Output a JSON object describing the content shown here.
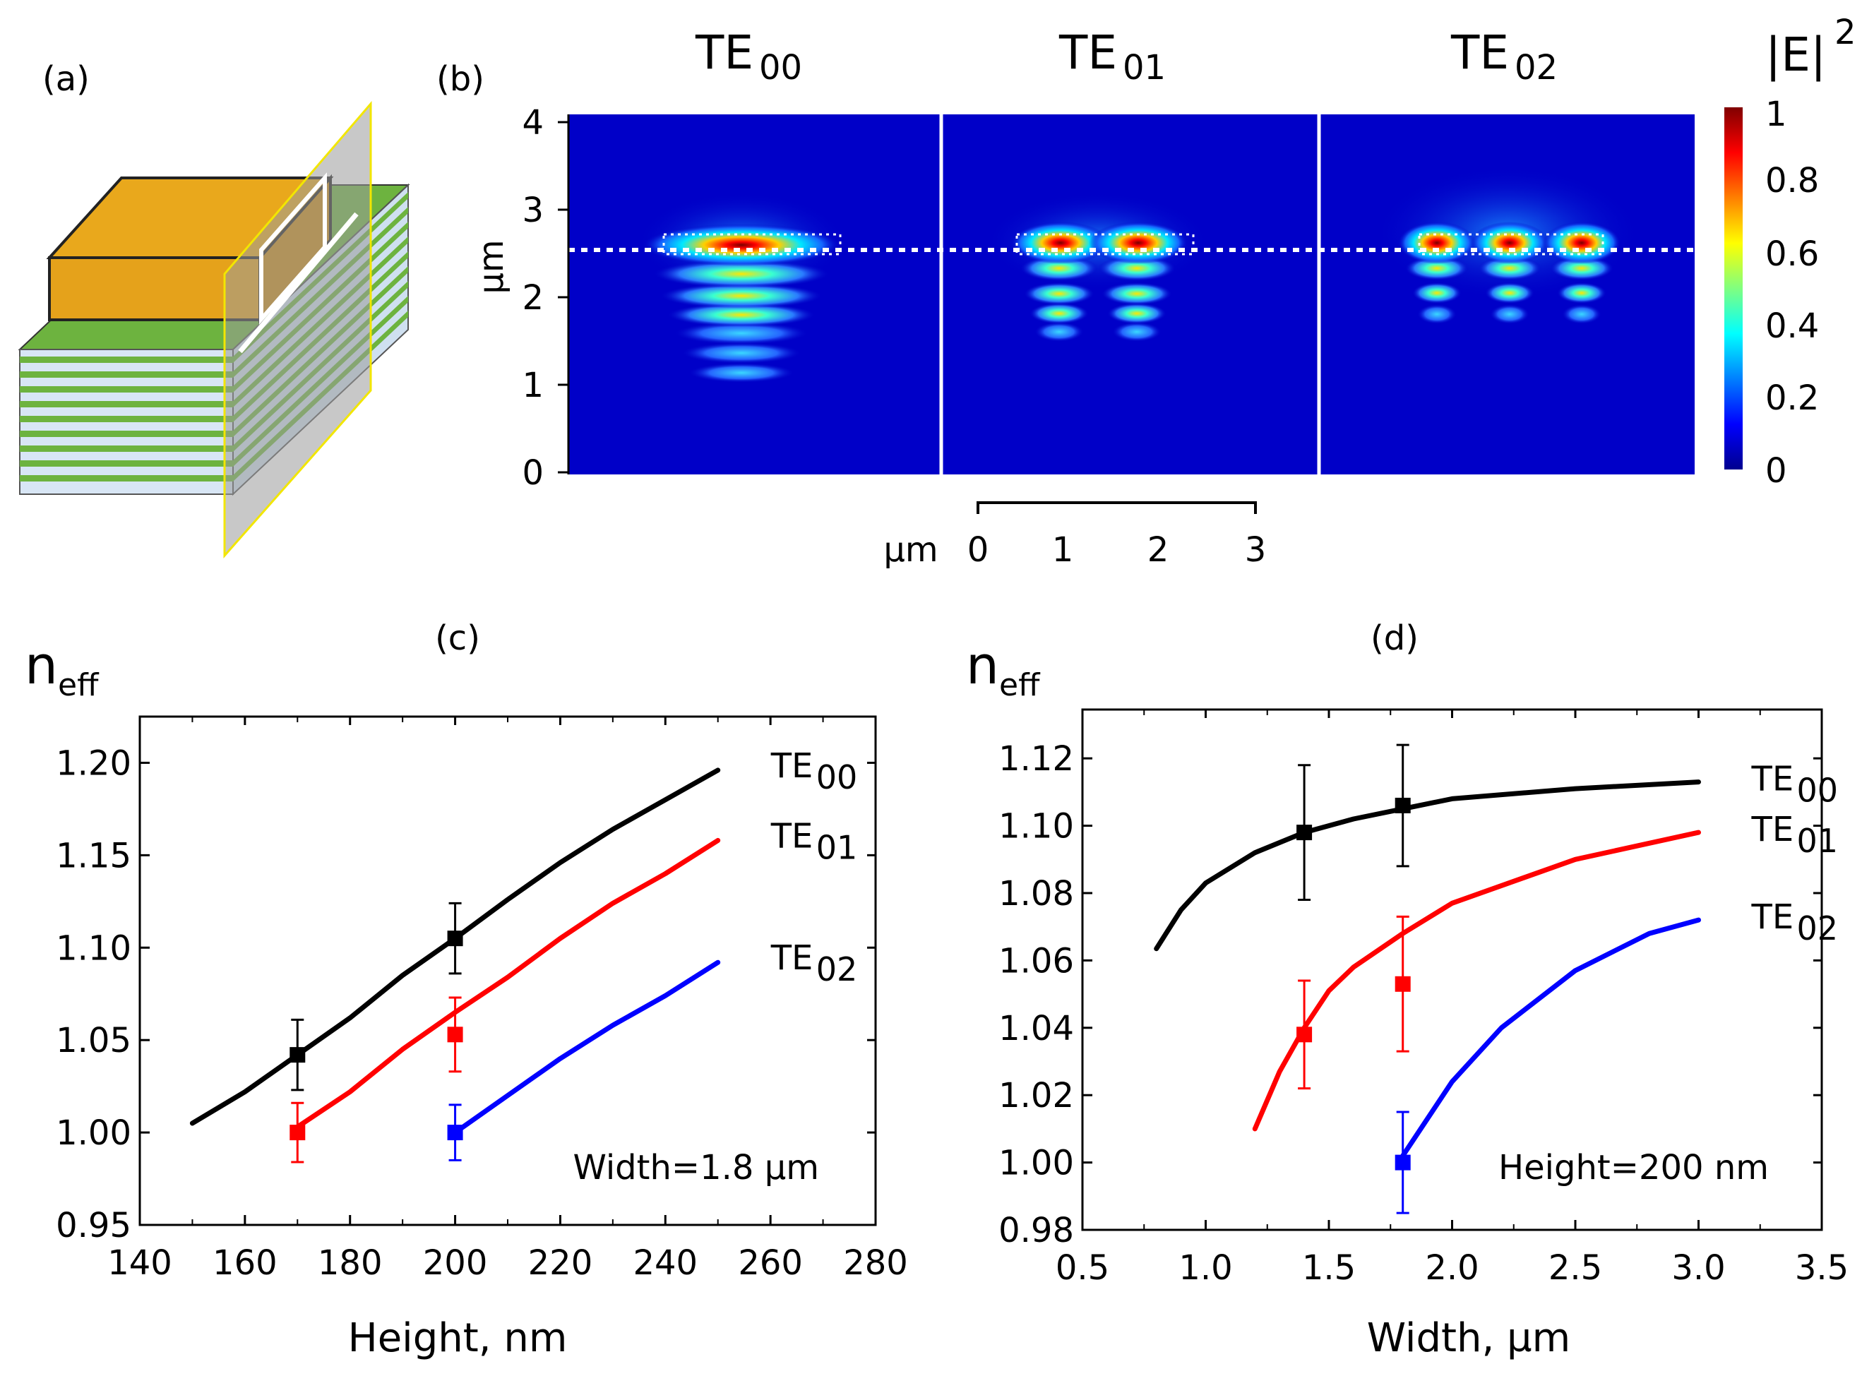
{
  "panels": {
    "a": {
      "label": "(a)"
    },
    "b": {
      "label": "(b)",
      "mode_headers": [
        {
          "base": "TE",
          "sub": "00"
        },
        {
          "base": "TE",
          "sub": "01"
        },
        {
          "base": "TE",
          "sub": "02"
        }
      ],
      "y_axis_label": "µm",
      "y_ticks": [
        "0",
        "1",
        "2",
        "3",
        "4"
      ],
      "scale_bar_label": "µm",
      "scale_bar_ticks": [
        "0",
        "1",
        "2",
        "3"
      ],
      "colorbar_title": "|E|",
      "colorbar_power": "2",
      "colorbar_ticks": [
        "0",
        "0.2",
        "0.4",
        "0.6",
        "0.8",
        "1"
      ]
    }
  },
  "chart_data": [
    {
      "id": "c",
      "type": "line",
      "panel_label": "(c)",
      "ylabel_base": "n",
      "ylabel_sub": "eff",
      "xlabel": "Height, nm",
      "annotation": "Width=1.8 µm",
      "xlim": [
        140,
        280
      ],
      "ylim": [
        0.95,
        1.225
      ],
      "xticks": [
        "140",
        "160",
        "180",
        "200",
        "220",
        "240",
        "260",
        "280"
      ],
      "yticks": [
        "0.95",
        "1.00",
        "1.05",
        "1.10",
        "1.15",
        "1.20"
      ],
      "series": [
        {
          "name": "TE",
          "sub": "00",
          "color": "#000000",
          "x": [
            150,
            160,
            170,
            180,
            190,
            200,
            210,
            220,
            230,
            240,
            250
          ],
          "y": [
            1.005,
            1.022,
            1.042,
            1.062,
            1.085,
            1.105,
            1.126,
            1.146,
            1.164,
            1.18,
            1.196
          ],
          "points": [
            {
              "x": 170,
              "y": 1.042,
              "err": 0.019
            },
            {
              "x": 200,
              "y": 1.105,
              "err": 0.019
            }
          ]
        },
        {
          "name": "TE",
          "sub": "01",
          "color": "#ff0000",
          "x": [
            170,
            180,
            190,
            200,
            210,
            220,
            230,
            240,
            250
          ],
          "y": [
            1.003,
            1.022,
            1.045,
            1.065,
            1.084,
            1.105,
            1.124,
            1.14,
            1.158
          ],
          "points": [
            {
              "x": 170,
              "y": 1.0,
              "err": 0.016
            },
            {
              "x": 200,
              "y": 1.053,
              "err": 0.02
            }
          ]
        },
        {
          "name": "TE",
          "sub": "02",
          "color": "#0000ff",
          "x": [
            200,
            210,
            220,
            230,
            240,
            250
          ],
          "y": [
            1.0,
            1.02,
            1.04,
            1.058,
            1.074,
            1.092
          ],
          "points": [
            {
              "x": 200,
              "y": 1.0,
              "err": 0.015
            }
          ]
        }
      ]
    },
    {
      "id": "d",
      "type": "line",
      "panel_label": "(d)",
      "ylabel_base": "n",
      "ylabel_sub": "eff",
      "xlabel": "Width, µm",
      "annotation": "Height=200 nm",
      "xlim": [
        0.5,
        3.5
      ],
      "ylim": [
        0.98,
        1.1345
      ],
      "xticks": [
        "0.5",
        "1.0",
        "1.5",
        "2.0",
        "2.5",
        "3.0",
        "3.5"
      ],
      "yticks": [
        "0.98",
        "1.00",
        "1.02",
        "1.04",
        "1.06",
        "1.08",
        "1.10",
        "1.12"
      ],
      "series": [
        {
          "name": "TE",
          "sub": "00",
          "color": "#000000",
          "x": [
            0.8,
            0.9,
            1.0,
            1.2,
            1.4,
            1.6,
            1.8,
            2.0,
            2.5,
            3.0
          ],
          "y": [
            1.0635,
            1.075,
            1.083,
            1.092,
            1.098,
            1.102,
            1.105,
            1.108,
            1.111,
            1.113
          ],
          "points": [
            {
              "x": 1.4,
              "y": 1.098,
              "err": 0.02
            },
            {
              "x": 1.8,
              "y": 1.106,
              "err": 0.018
            }
          ]
        },
        {
          "name": "TE",
          "sub": "01",
          "color": "#ff0000",
          "x": [
            1.2,
            1.3,
            1.4,
            1.5,
            1.6,
            1.8,
            2.0,
            2.5,
            3.0
          ],
          "y": [
            1.01,
            1.027,
            1.04,
            1.051,
            1.058,
            1.068,
            1.077,
            1.09,
            1.098
          ],
          "points": [
            {
              "x": 1.4,
              "y": 1.038,
              "err": 0.016
            },
            {
              "x": 1.8,
              "y": 1.053,
              "err": 0.02
            }
          ]
        },
        {
          "name": "TE",
          "sub": "02",
          "color": "#0000ff",
          "x": [
            1.8,
            1.9,
            2.0,
            2.2,
            2.5,
            2.8,
            3.0
          ],
          "y": [
            1.002,
            1.013,
            1.024,
            1.04,
            1.057,
            1.068,
            1.072
          ],
          "points": [
            {
              "x": 1.8,
              "y": 1.0,
              "err": 0.015
            }
          ]
        }
      ]
    }
  ]
}
